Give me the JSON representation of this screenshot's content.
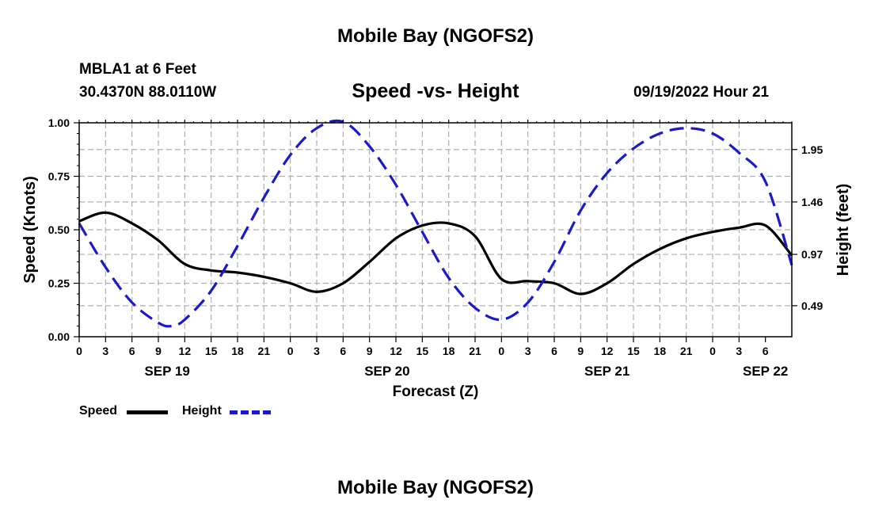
{
  "header": {
    "main_title": "Mobile Bay (NGOFS2)",
    "station": "MBLA1 at 6 Feet",
    "coords": "30.4370N  88.0110W",
    "date": "09/19/2022 Hour 21",
    "footer_title": "Mobile Bay (NGOFS2)"
  },
  "legend": {
    "speed_label": "Speed",
    "height_label": "Height"
  },
  "colors": {
    "speed": "#000000",
    "height": "#1a1acc",
    "grid": "#b0b0b0"
  },
  "chart_data": {
    "type": "line",
    "title": "Speed -vs- Height",
    "xlabel": "Forecast (Z)",
    "ylabel": "Speed (Knots)",
    "y2label": "Height (feet)",
    "x_range_hours": [
      0,
      81
    ],
    "ylim": [
      0,
      1.0
    ],
    "y2lim": [
      0.2,
      2.2
    ],
    "y_ticks": [
      "0.00",
      "0.25",
      "0.50",
      "0.75",
      "1.00"
    ],
    "y2_ticks": [
      "0.49",
      "0.97",
      "1.46",
      "1.95"
    ],
    "x_tick_labels": [
      "0",
      "3",
      "6",
      "9",
      "12",
      "15",
      "18",
      "21",
      "0",
      "3",
      "6",
      "9",
      "12",
      "15",
      "18",
      "21",
      "0",
      "3",
      "6",
      "9",
      "12",
      "15",
      "18",
      "21",
      "0",
      "3",
      "6"
    ],
    "date_labels": [
      {
        "label": "SEP 19",
        "hour": 10
      },
      {
        "label": "SEP 20",
        "hour": 35
      },
      {
        "label": "SEP 21",
        "hour": 60
      },
      {
        "label": "SEP 22",
        "hour": 78
      }
    ],
    "series": [
      {
        "name": "Speed",
        "axis": "left",
        "style": "solid",
        "x": [
          0,
          3,
          6,
          9,
          12,
          15,
          18,
          21,
          24,
          27,
          30,
          33,
          36,
          39,
          42,
          45,
          48,
          51,
          54,
          57,
          60,
          63,
          66,
          69,
          72,
          75,
          78,
          81
        ],
        "values": [
          0.54,
          0.58,
          0.53,
          0.45,
          0.34,
          0.31,
          0.3,
          0.28,
          0.25,
          0.21,
          0.25,
          0.35,
          0.46,
          0.52,
          0.53,
          0.47,
          0.27,
          0.26,
          0.25,
          0.2,
          0.25,
          0.34,
          0.41,
          0.46,
          0.49,
          0.51,
          0.52,
          0.38
        ]
      },
      {
        "name": "Height",
        "axis": "right",
        "style": "dashed",
        "x": [
          0,
          3,
          6,
          9,
          10.5,
          12,
          15,
          18,
          21,
          24,
          27,
          30,
          33,
          36,
          39,
          42,
          45,
          48,
          51,
          54,
          57,
          60,
          63,
          66,
          69,
          72,
          75,
          78,
          81
        ],
        "values": [
          1.26,
          0.85,
          0.52,
          0.33,
          0.3,
          0.36,
          0.63,
          1.05,
          1.5,
          1.9,
          2.15,
          2.21,
          1.98,
          1.62,
          1.18,
          0.75,
          0.47,
          0.36,
          0.52,
          0.9,
          1.38,
          1.73,
          1.96,
          2.1,
          2.15,
          2.1,
          1.92,
          1.65,
          0.87
        ]
      }
    ]
  }
}
